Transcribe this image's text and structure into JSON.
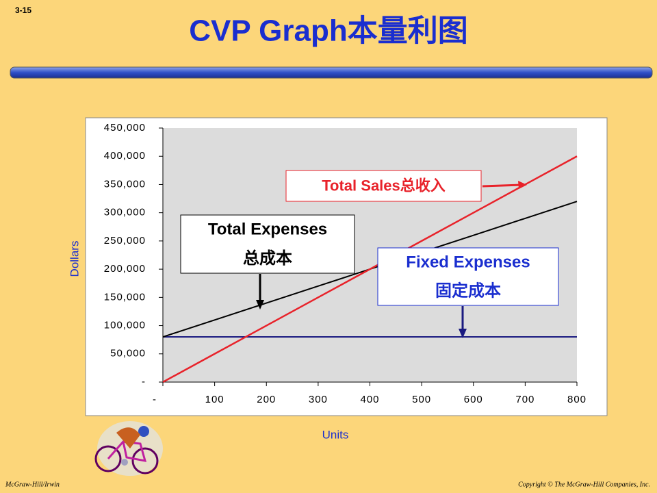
{
  "slide": {
    "number": "3-15",
    "footer_left": "McGraw-Hill/Irwin",
    "footer_right": "Copyright © The McGraw-Hill Companies, Inc."
  },
  "chart_data": {
    "type": "line",
    "title": "CVP Graph本量利图",
    "x_label": "Units",
    "y_label": "Dollars",
    "x": [
      0,
      100,
      200,
      300,
      400,
      500,
      600,
      700,
      800
    ],
    "series": [
      {
        "name": "Total Sales",
        "color": "#e8222a",
        "values": [
          0,
          50000,
          100000,
          150000,
          200000,
          250000,
          300000,
          350000,
          400000
        ]
      },
      {
        "name": "Total Expenses",
        "color": "#000000",
        "values": [
          80000,
          110000,
          140000,
          170000,
          200000,
          230000,
          260000,
          290000,
          320000
        ]
      },
      {
        "name": "Fixed Expenses",
        "color": "#1a1a80",
        "values": [
          80000,
          80000,
          80000,
          80000,
          80000,
          80000,
          80000,
          80000,
          80000
        ]
      }
    ],
    "xlim": [
      0,
      800
    ],
    "ylim": [
      0,
      450000
    ],
    "xticks": [
      {
        "value": 0,
        "label": "-"
      },
      100,
      200,
      300,
      400,
      500,
      600,
      700,
      800
    ],
    "yticks": [
      {
        "value": 0,
        "label": "-"
      },
      {
        "value": 50000,
        "label": "50,000"
      },
      {
        "value": 100000,
        "label": "100,000"
      },
      {
        "value": 150000,
        "label": "150,000"
      },
      {
        "value": 200000,
        "label": "200,000"
      },
      {
        "value": 250000,
        "label": "250,000"
      },
      {
        "value": 300000,
        "label": "300,000"
      },
      {
        "value": 350000,
        "label": "350,000"
      },
      {
        "value": 400000,
        "label": "400,000"
      },
      {
        "value": 450000,
        "label": "450,000"
      }
    ],
    "grid": false,
    "annotations": [
      {
        "lines": [
          "Total Sales总收入"
        ],
        "color": "#e8222a"
      },
      {
        "lines": [
          "Total Expenses",
          "总成本"
        ],
        "color": "#000000"
      },
      {
        "lines": [
          "Fixed Expenses",
          "固定成本"
        ],
        "color": "#1a2ecf"
      }
    ]
  }
}
